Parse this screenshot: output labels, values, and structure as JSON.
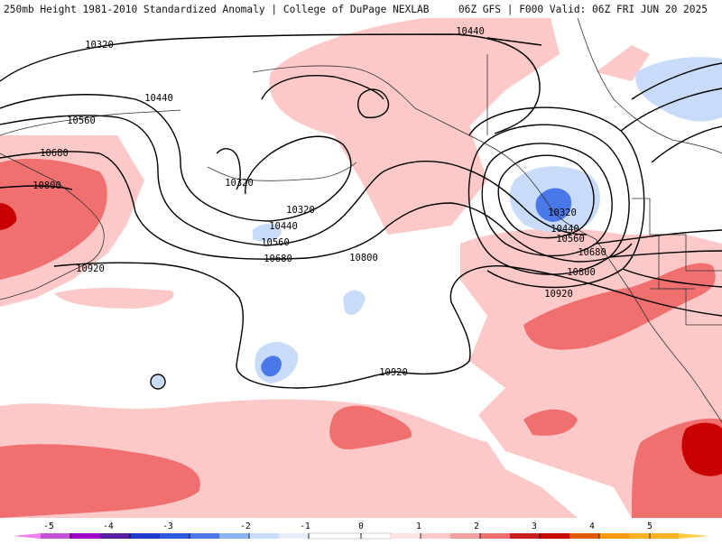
{
  "header": {
    "title_left": "250mb Height 1981-2010 Standardized Anomaly | College of DuPage NEXLAB",
    "title_right": "06Z GFS | F000 Valid: 06Z FRI JUN 20 2025"
  },
  "colors": {
    "neg5": "#f07ff0",
    "neg4": "#a000c8",
    "neg3": "#1e3cc8",
    "neg2": "#4a78e8",
    "neg1": "#c8dcfa",
    "neutral": "#ffffff",
    "pos1": "#fcc8c8",
    "pos2": "#f07070",
    "pos3": "#c81e1e",
    "pos4": "#c80000",
    "pos5": "#ff9900"
  },
  "contour_labels": [
    {
      "id": "10320a",
      "text": "10320"
    },
    {
      "id": "10440a",
      "text": "10440"
    },
    {
      "id": "10440b",
      "text": "10440"
    },
    {
      "id": "10560a",
      "text": "10560"
    },
    {
      "id": "10680a",
      "text": "10680"
    },
    {
      "id": "10800a",
      "text": "10800"
    },
    {
      "id": "10320b",
      "text": "10320"
    },
    {
      "id": "10320c",
      "text": "10320"
    },
    {
      "id": "10440c",
      "text": "10440"
    },
    {
      "id": "10560b",
      "text": "10560"
    },
    {
      "id": "10680b",
      "text": "10680"
    },
    {
      "id": "10800b",
      "text": "10800"
    },
    {
      "id": "10920a",
      "text": "10920"
    },
    {
      "id": "10920b",
      "text": "10920"
    },
    {
      "id": "10320d",
      "text": "10320"
    },
    {
      "id": "10440d",
      "text": "10440"
    },
    {
      "id": "10560c",
      "text": "10560"
    },
    {
      "id": "10680c",
      "text": "10680"
    },
    {
      "id": "10800c",
      "text": "10800"
    },
    {
      "id": "10920c",
      "text": "10920"
    }
  ],
  "legend": {
    "ticks": [
      "-5",
      "-4",
      "-3",
      "-2",
      "-1",
      "0",
      "1",
      "2",
      "3",
      "4",
      "5"
    ]
  }
}
